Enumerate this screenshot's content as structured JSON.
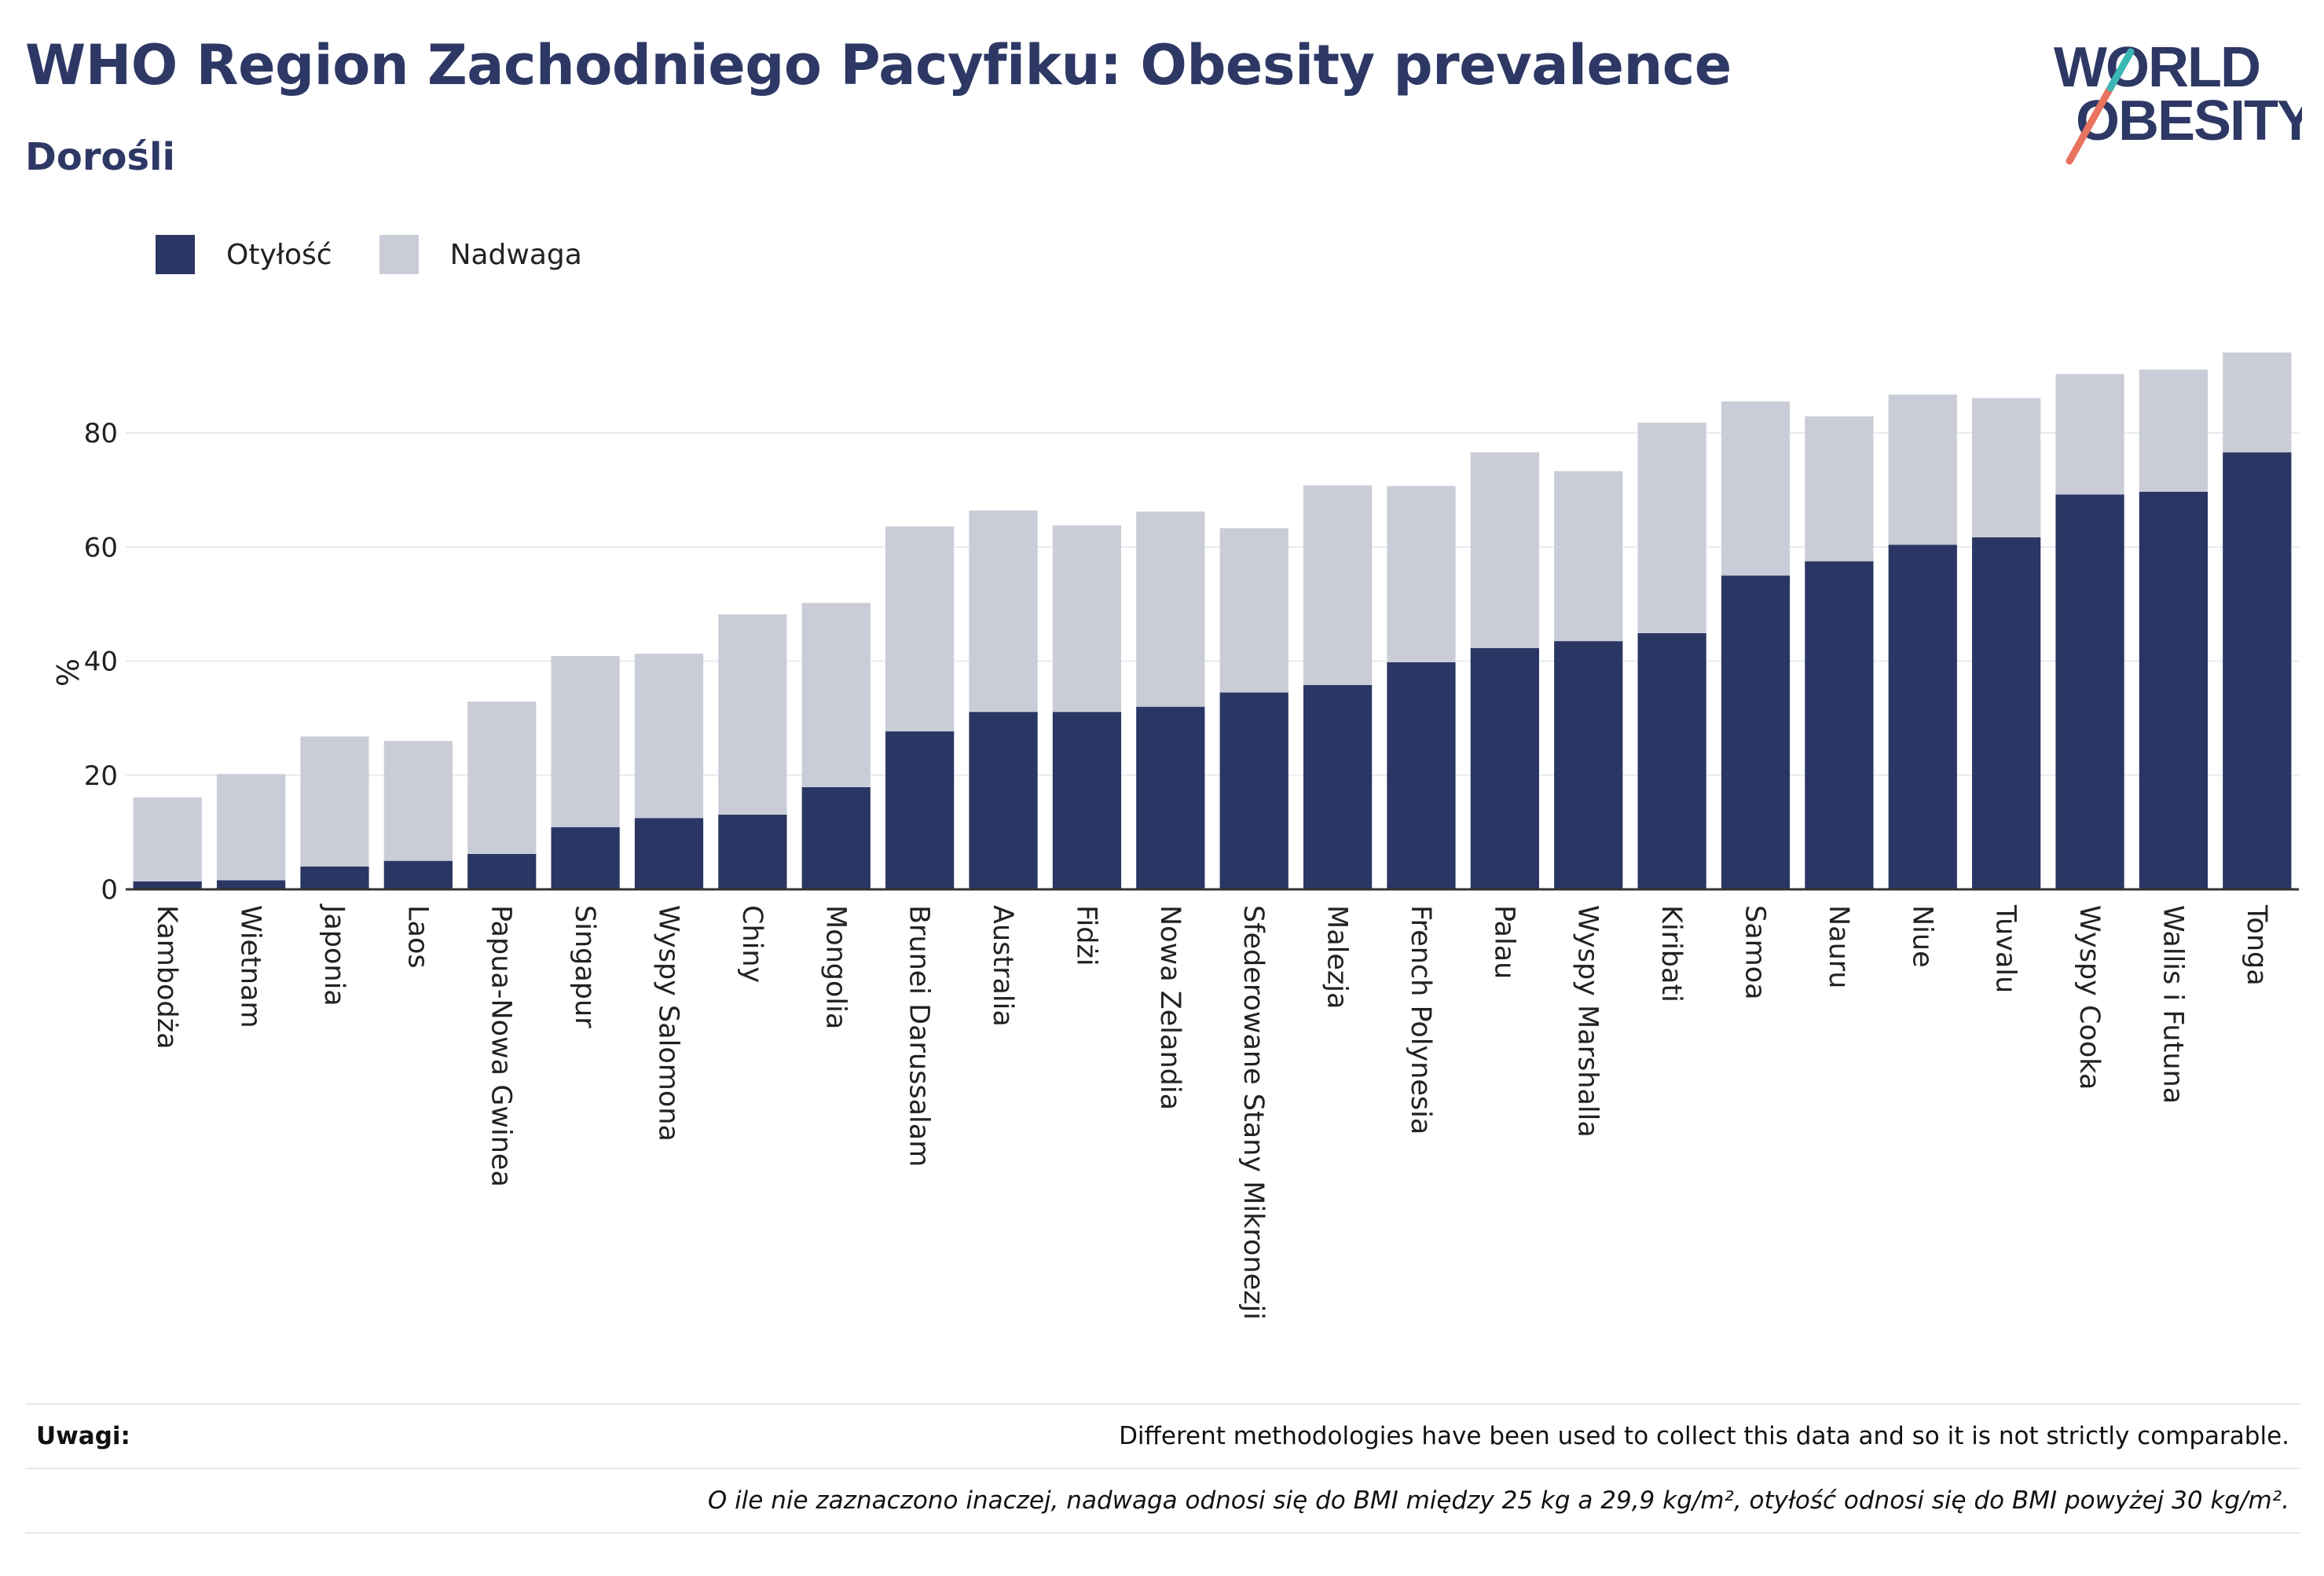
{
  "header": {
    "title": "WHO Region Zachodniego Pacyfiku: Obesity prevalence",
    "subtitle": "Dorośli"
  },
  "logo": {
    "line1": "WORLD",
    "line2": "OBESITY"
  },
  "legend": [
    {
      "label": "Otyłość",
      "color": "#2a3663"
    },
    {
      "label": "Nadwaga",
      "color": "#cacdd8"
    }
  ],
  "chart_data": {
    "type": "bar",
    "stacked": true,
    "ylabel": "%",
    "ylim": [
      0,
      95
    ],
    "yticks": [
      0,
      20,
      40,
      60,
      80
    ],
    "grid": true,
    "legend_position": "top-left",
    "categories": [
      "Kambodża",
      "Wietnam",
      "Japonia",
      "Laos",
      "Papua-Nowa Gwinea",
      "Singapur",
      "Wyspy Salomona",
      "Chiny",
      "Mongolia",
      "Brunei Darussalam",
      "Australia",
      "Fidżi",
      "Nowa Zelandia",
      "Sfederowane Stany Mikronezji",
      "Malezja",
      "French Polynesia",
      "Palau",
      "Wyspy Marshalla",
      "Kiribati",
      "Samoa",
      "Nauru",
      "Niue",
      "Tuvalu",
      "Wyspy Cooka",
      "Wallis i Futuna",
      "Tonga"
    ],
    "series": [
      {
        "name": "Otyłość",
        "color": "#2a3663",
        "values": [
          1.4,
          1.6,
          4.0,
          5.0,
          6.2,
          10.9,
          12.5,
          13.1,
          17.9,
          27.7,
          31.1,
          31.1,
          32.0,
          34.5,
          35.8,
          39.8,
          42.3,
          43.5,
          44.9,
          55.0,
          57.5,
          60.4,
          61.7,
          69.2,
          69.7,
          76.6
        ]
      },
      {
        "name": "Nadwaga",
        "color": "#cacdd8",
        "values": [
          14.7,
          18.6,
          22.8,
          21.0,
          26.7,
          30.0,
          28.8,
          35.1,
          32.3,
          35.9,
          35.3,
          32.7,
          34.2,
          28.8,
          35.0,
          30.9,
          34.3,
          29.8,
          36.9,
          30.5,
          25.4,
          26.3,
          24.4,
          21.1,
          21.4,
          17.5
        ]
      }
    ]
  },
  "notes": {
    "label": "Uwagi:",
    "text1": "Different methodologies have been used to collect this data and so it is not strictly comparable.",
    "text2": "O ile nie zaznaczono inaczej, nadwaga odnosi się do BMI między 25 kg a 29,9 kg/m², otyłość odnosi się do BMI powyżej 30 kg/m²."
  }
}
